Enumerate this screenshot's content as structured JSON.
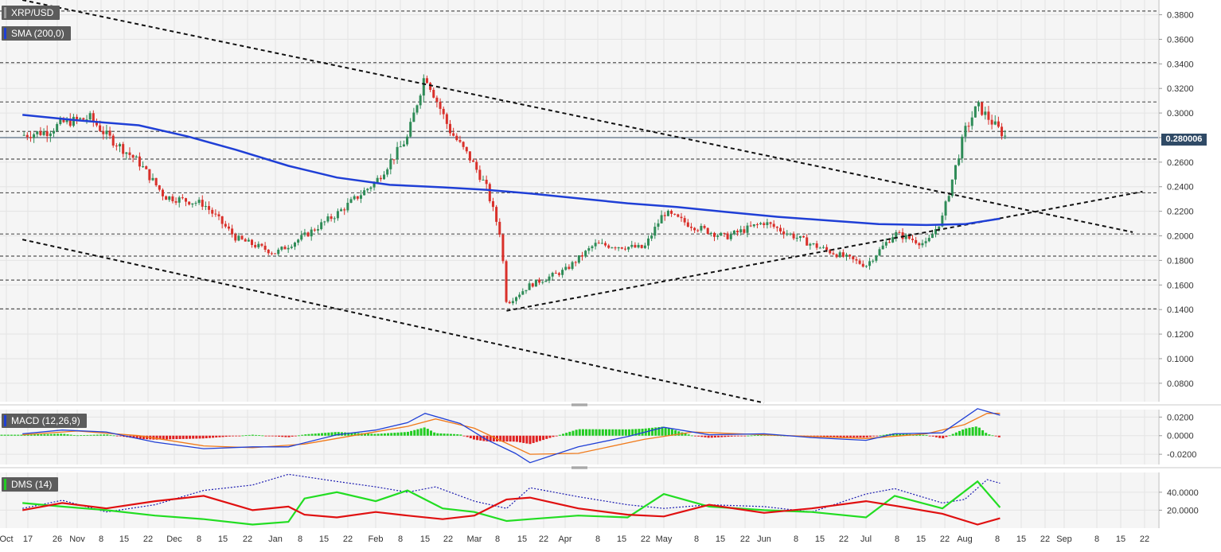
{
  "symbol_label": "XRP/USD",
  "sma_label": "SMA (200,0)",
  "macd_label": "MACD (12,26,9)",
  "dms_label": "DMS (14)",
  "last_price": "0.280006",
  "colors": {
    "up": "#2e8b57",
    "down": "#d9302a",
    "sma": "#1f3fd6",
    "macd_line": "#1f3fd6",
    "signal_line": "#f07a1a",
    "hist_pos": "#22cc22",
    "hist_neg": "#e02020",
    "dms_plus": "#22dd22",
    "dms_minus": "#e01010",
    "adx": "#1a1ab0",
    "grid": "#e4e4e4",
    "panel_bg": "#f5f5f5"
  },
  "chart_data": [
    {
      "type": "candlestick",
      "title": "XRP/USD",
      "y_ticks": [
        "0.3800",
        "0.3600",
        "0.3400",
        "0.3200",
        "0.3000",
        "0.2800",
        "0.2600",
        "0.2400",
        "0.2200",
        "0.2000",
        "0.1800",
        "0.1600",
        "0.1400",
        "0.1200",
        "0.1000",
        "0.0800"
      ],
      "ylim": [
        0.065,
        0.392
      ],
      "x_ticks": [
        "Oct",
        "17",
        "26",
        "Nov",
        "8",
        "15",
        "22",
        "Dec",
        "8",
        "15",
        "22",
        "Jan",
        "8",
        "15",
        "22",
        "Feb",
        "8",
        "15",
        "22",
        "Mar",
        "8",
        "15",
        "22",
        "Apr",
        "8",
        "15",
        "22",
        "May",
        "8",
        "15",
        "22",
        "Jun",
        "8",
        "15",
        "22",
        "Jul",
        "8",
        "15",
        "22",
        "Aug",
        "8",
        "15",
        "22",
        "Sep",
        "8",
        "15",
        "22"
      ],
      "horizontal_levels": [
        0.383,
        0.341,
        0.309,
        0.285,
        0.2625,
        0.235,
        0.2015,
        0.1835,
        0.164,
        0.1405
      ],
      "trend_lines": [
        {
          "from": [
            "Oct 10",
            0.392
          ],
          "to": [
            "Sep 22",
            0.203
          ]
        },
        {
          "from": [
            "Oct 10",
            0.197
          ],
          "to": [
            "Jun 1",
            0.064
          ]
        },
        {
          "from": [
            "Mar 12",
            0.139
          ],
          "to": [
            "Sep 25",
            0.236
          ]
        }
      ],
      "sma_200": [
        [
          "Oct 10",
          0.2985
        ],
        [
          "Nov 1",
          0.294
        ],
        [
          "Nov 20",
          0.29
        ],
        [
          "Dec 5",
          0.281
        ],
        [
          "Dec 20",
          0.27
        ],
        [
          "Jan 5",
          0.257
        ],
        [
          "Jan 20",
          0.2475
        ],
        [
          "Feb 5",
          0.2415
        ],
        [
          "Feb 20",
          0.2395
        ],
        [
          "Mar 5",
          0.2375
        ],
        [
          "Mar 20",
          0.2345
        ],
        [
          "Apr 5",
          0.2305
        ],
        [
          "Apr 20",
          0.2265
        ],
        [
          "May 5",
          0.2235
        ],
        [
          "May 20",
          0.2195
        ],
        [
          "Jun 5",
          0.2155
        ],
        [
          "Jun 20",
          0.2125
        ],
        [
          "Jul 5",
          0.2095
        ],
        [
          "Jul 20",
          0.2088
        ],
        [
          "Aug 1",
          0.2095
        ],
        [
          "Aug 12",
          0.214
        ]
      ],
      "price_path": [
        [
          "Oct 10",
          0.282
        ],
        [
          "Oct 20",
          0.285
        ],
        [
          "Oct 26",
          0.292
        ],
        [
          "Nov 5",
          0.296
        ],
        [
          "Nov 10",
          0.282
        ],
        [
          "Nov 20",
          0.26
        ],
        [
          "Nov 28",
          0.232
        ],
        [
          "Dec 10",
          0.226
        ],
        [
          "Dec 20",
          0.198
        ],
        [
          "Jan 1",
          0.186
        ],
        [
          "Jan 10",
          0.2
        ],
        [
          "Jan 20",
          0.218
        ],
        [
          "Feb 1",
          0.244
        ],
        [
          "Feb 10",
          0.28
        ],
        [
          "Feb 15",
          0.332
        ],
        [
          "Feb 22",
          0.286
        ],
        [
          "Feb 28",
          0.262
        ],
        [
          "Mar 5",
          0.24
        ],
        [
          "Mar 10",
          0.2
        ],
        [
          "Mar 12",
          0.145
        ],
        [
          "Mar 20",
          0.16
        ],
        [
          "Apr 1",
          0.172
        ],
        [
          "Apr 10",
          0.193
        ],
        [
          "Apr 25",
          0.19
        ],
        [
          "May 1",
          0.219
        ],
        [
          "May 10",
          0.208
        ],
        [
          "May 20",
          0.199
        ],
        [
          "Jun 1",
          0.211
        ],
        [
          "Jun 15",
          0.193
        ],
        [
          "Jul 1",
          0.176
        ],
        [
          "Jul 10",
          0.202
        ],
        [
          "Jul 20",
          0.193
        ],
        [
          "Jul 25",
          0.215
        ],
        [
          "Aug 1",
          0.285
        ],
        [
          "Aug 5",
          0.306
        ],
        [
          "Aug 10",
          0.291
        ],
        [
          "Aug 14",
          0.28
        ]
      ]
    },
    {
      "type": "macd",
      "title": "MACD (12,26,9)",
      "y_ticks": [
        "0.0200",
        "0.0000",
        "-0.0200"
      ],
      "ylim": [
        -0.031,
        0.028
      ],
      "macd": [
        [
          "Oct 10",
          0.002
        ],
        [
          "Oct 26",
          0.006
        ],
        [
          "Nov 10",
          0.004
        ],
        [
          "Nov 25",
          -0.007
        ],
        [
          "Dec 10",
          -0.014
        ],
        [
          "Dec 25",
          -0.012
        ],
        [
          "Jan 5",
          -0.012
        ],
        [
          "Jan 20",
          0.001
        ],
        [
          "Feb 1",
          0.006
        ],
        [
          "Feb 10",
          0.014
        ],
        [
          "Feb 15",
          0.024
        ],
        [
          "Feb 25",
          0.013
        ],
        [
          "Mar 5",
          -0.004
        ],
        [
          "Mar 15",
          -0.019
        ],
        [
          "Mar 20",
          -0.029
        ],
        [
          "Apr 5",
          -0.012
        ],
        [
          "Apr 20",
          -0.001
        ],
        [
          "May 1",
          0.009
        ],
        [
          "May 15",
          0.001
        ],
        [
          "Jun 1",
          0.002
        ],
        [
          "Jun 15",
          -0.002
        ],
        [
          "Jul 1",
          -0.005
        ],
        [
          "Jul 10",
          0.002
        ],
        [
          "Jul 25",
          0.003
        ],
        [
          "Aug 5",
          0.029
        ],
        [
          "Aug 12",
          0.022
        ]
      ],
      "signal": [
        [
          "Oct 10",
          0.001
        ],
        [
          "Nov 1",
          0.005
        ],
        [
          "Nov 20",
          0.0
        ],
        [
          "Dec 10",
          -0.011
        ],
        [
          "Dec 25",
          -0.013
        ],
        [
          "Jan 10",
          -0.009
        ],
        [
          "Jan 25",
          0.0
        ],
        [
          "Feb 10",
          0.01
        ],
        [
          "Feb 18",
          0.018
        ],
        [
          "Mar 1",
          0.008
        ],
        [
          "Mar 20",
          -0.02
        ],
        [
          "Apr 5",
          -0.019
        ],
        [
          "Apr 25",
          -0.004
        ],
        [
          "May 10",
          0.004
        ],
        [
          "Jun 1",
          0.001
        ],
        [
          "Jul 1",
          -0.003
        ],
        [
          "Jul 20",
          0.002
        ],
        [
          "Aug 1",
          0.012
        ],
        [
          "Aug 8",
          0.024
        ],
        [
          "Aug 12",
          0.024
        ]
      ]
    },
    {
      "type": "dms",
      "title": "DMS (14)",
      "y_ticks": [
        "40.0000",
        "20.0000"
      ],
      "ylim": [
        0,
        62
      ],
      "plus_di": [
        [
          "Oct 10",
          28
        ],
        [
          "Oct 26",
          24
        ],
        [
          "Nov 10",
          20
        ],
        [
          "Nov 25",
          14
        ],
        [
          "Dec 10",
          10
        ],
        [
          "Dec 25",
          4
        ],
        [
          "Jan 5",
          7
        ],
        [
          "Jan 10",
          33
        ],
        [
          "Jan 20",
          40
        ],
        [
          "Feb 1",
          30
        ],
        [
          "Feb 10",
          42
        ],
        [
          "Feb 20",
          22
        ],
        [
          "Mar 1",
          18
        ],
        [
          "Mar 12",
          8
        ],
        [
          "Mar 20",
          10
        ],
        [
          "Apr 5",
          14
        ],
        [
          "Apr 20",
          12
        ],
        [
          "May 1",
          38
        ],
        [
          "May 15",
          24
        ],
        [
          "Jun 1",
          20
        ],
        [
          "Jun 15",
          18
        ],
        [
          "Jul 1",
          12
        ],
        [
          "Jul 10",
          36
        ],
        [
          "Jul 25",
          22
        ],
        [
          "Aug 5",
          52
        ],
        [
          "Aug 12",
          23
        ]
      ],
      "minus_di": [
        [
          "Oct 10",
          20
        ],
        [
          "Oct 26",
          28
        ],
        [
          "Nov 10",
          22
        ],
        [
          "Nov 25",
          30
        ],
        [
          "Dec 10",
          36
        ],
        [
          "Dec 25",
          20
        ],
        [
          "Jan 5",
          24
        ],
        [
          "Jan 10",
          15
        ],
        [
          "Jan 20",
          12
        ],
        [
          "Feb 1",
          18
        ],
        [
          "Feb 10",
          14
        ],
        [
          "Feb 20",
          10
        ],
        [
          "Mar 1",
          14
        ],
        [
          "Mar 12",
          32
        ],
        [
          "Mar 20",
          34
        ],
        [
          "Apr 5",
          22
        ],
        [
          "Apr 20",
          15
        ],
        [
          "May 1",
          13
        ],
        [
          "May 15",
          26
        ],
        [
          "Jun 1",
          17
        ],
        [
          "Jun 15",
          22
        ],
        [
          "Jul 1",
          30
        ],
        [
          "Jul 10",
          25
        ],
        [
          "Jul 25",
          16
        ],
        [
          "Aug 5",
          4
        ],
        [
          "Aug 12",
          11
        ]
      ],
      "adx": [
        [
          "Oct 10",
          22
        ],
        [
          "Oct 26",
          31
        ],
        [
          "Nov 10",
          18
        ],
        [
          "Nov 25",
          26
        ],
        [
          "Dec 10",
          42
        ],
        [
          "Dec 25",
          48
        ],
        [
          "Jan 5",
          60
        ],
        [
          "Jan 20",
          52
        ],
        [
          "Feb 1",
          46
        ],
        [
          "Feb 10",
          40
        ],
        [
          "Feb 18",
          46
        ],
        [
          "Mar 1",
          30
        ],
        [
          "Mar 12",
          22
        ],
        [
          "Mar 20",
          45
        ],
        [
          "Apr 5",
          35
        ],
        [
          "Apr 20",
          26
        ],
        [
          "May 1",
          22
        ],
        [
          "May 15",
          26
        ],
        [
          "Jun 1",
          24
        ],
        [
          "Jun 15",
          18
        ],
        [
          "Jul 1",
          38
        ],
        [
          "Jul 10",
          44
        ],
        [
          "Jul 25",
          28
        ],
        [
          "Aug 1",
          32
        ],
        [
          "Aug 8",
          54
        ],
        [
          "Aug 12",
          50
        ]
      ]
    }
  ]
}
